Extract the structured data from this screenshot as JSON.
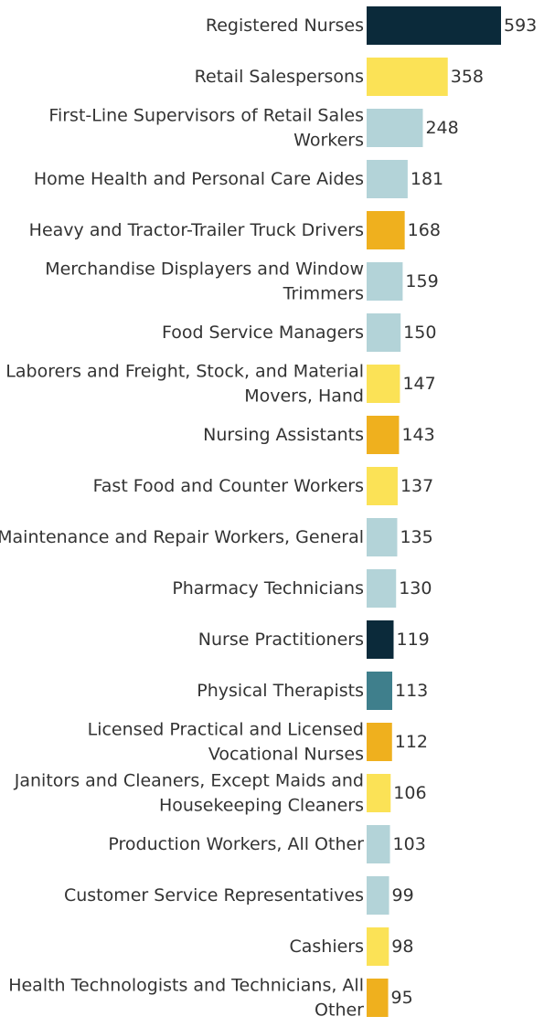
{
  "chart_data": {
    "type": "bar",
    "orientation": "horizontal",
    "categories": [
      [
        "Registered Nurses"
      ],
      [
        "Retail Salespersons"
      ],
      [
        "First-Line Supervisors of Retail Sales",
        "Workers"
      ],
      [
        "Home Health and Personal Care Aides"
      ],
      [
        "Heavy and Tractor-Trailer Truck Drivers"
      ],
      [
        "Merchandise Displayers and Window",
        "Trimmers"
      ],
      [
        "Food Service Managers"
      ],
      [
        "Laborers and Freight, Stock, and Material",
        "Movers, Hand"
      ],
      [
        "Nursing Assistants"
      ],
      [
        "Fast Food and Counter Workers"
      ],
      [
        "Maintenance and Repair Workers, General"
      ],
      [
        "Pharmacy Technicians"
      ],
      [
        "Nurse Practitioners"
      ],
      [
        "Physical Therapists"
      ],
      [
        "Licensed Practical and Licensed",
        "Vocational Nurses"
      ],
      [
        "Janitors and Cleaners, Except Maids and",
        "Housekeeping Cleaners"
      ],
      [
        "Production Workers, All Other"
      ],
      [
        "Customer Service Representatives"
      ],
      [
        "Cashiers"
      ],
      [
        "Health Technologists and Technicians, All",
        "Other"
      ]
    ],
    "values": [
      593,
      358,
      248,
      181,
      168,
      159,
      150,
      147,
      143,
      137,
      135,
      130,
      119,
      113,
      112,
      106,
      103,
      99,
      98,
      95
    ],
    "value_labels": [
      "593",
      "358",
      "248",
      "181",
      "168",
      "159",
      "150",
      "147",
      "143",
      "137",
      "135",
      "130",
      "119",
      "113",
      "112",
      "106",
      "103",
      "99",
      "98",
      "95"
    ],
    "colors": [
      "#0b2a3a",
      "#fbe256",
      "#b3d3d8",
      "#b3d3d8",
      "#efb01e",
      "#b3d3d8",
      "#b3d3d8",
      "#fbe256",
      "#efb01e",
      "#fbe256",
      "#b3d3d8",
      "#b3d3d8",
      "#0b2a3a",
      "#3f7f8c",
      "#efb01e",
      "#fbe256",
      "#b3d3d8",
      "#b3d3d8",
      "#fbe256",
      "#efb01e"
    ],
    "xlim": [
      0,
      593
    ],
    "grid": false,
    "legend": "none",
    "title": "",
    "xlabel": "",
    "ylabel": ""
  }
}
